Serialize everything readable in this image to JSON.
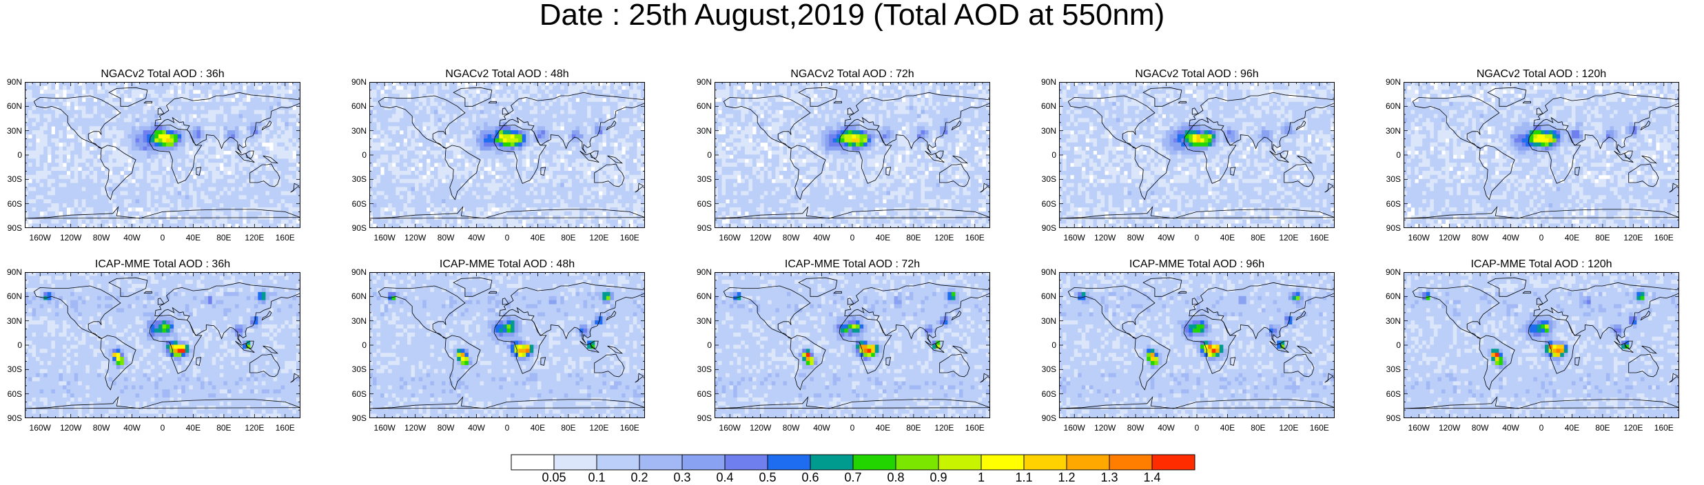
{
  "main_title": "Date : 25th August,2019 (Total AOD at 550nm)",
  "lat_labels": [
    "90N",
    "60N",
    "30N",
    "0",
    "30S",
    "60S",
    "90S"
  ],
  "lon_labels": [
    "160W",
    "120W",
    "80W",
    "40W",
    "0",
    "40E",
    "80E",
    "120E",
    "160E"
  ],
  "panels": [
    {
      "title": "NGACv2 Total AOD : 36h",
      "model": "ngac"
    },
    {
      "title": "NGACv2 Total AOD : 48h",
      "model": "ngac"
    },
    {
      "title": "NGACv2 Total AOD : 72h",
      "model": "ngac"
    },
    {
      "title": "NGACv2 Total AOD : 96h",
      "model": "ngac"
    },
    {
      "title": "NGACv2 Total AOD : 120h",
      "model": "ngac"
    },
    {
      "title": "ICAP-MME Total AOD : 36h",
      "model": "icap"
    },
    {
      "title": "ICAP-MME Total AOD : 48h",
      "model": "icap"
    },
    {
      "title": "ICAP-MME Total AOD : 72h",
      "model": "icap"
    },
    {
      "title": "ICAP-MME Total AOD : 96h",
      "model": "icap"
    },
    {
      "title": "ICAP-MME Total AOD : 120h",
      "model": "icap"
    }
  ],
  "colorbar": {
    "labels": [
      "0.05",
      "0.1",
      "0.2",
      "0.3",
      "0.4",
      "0.5",
      "0.6",
      "0.7",
      "0.8",
      "0.9",
      "1",
      "1.1",
      "1.2",
      "1.3",
      "1.4"
    ],
    "colors": [
      "#ffffff",
      "#dbe6fb",
      "#bccff8",
      "#a2b9f5",
      "#8aa2f2",
      "#6f80ee",
      "#1e6cf0",
      "#009b8f",
      "#22d500",
      "#7be600",
      "#c9f400",
      "#ffff00",
      "#ffd200",
      "#ffa800",
      "#ff7e00",
      "#ff2c00"
    ]
  }
}
